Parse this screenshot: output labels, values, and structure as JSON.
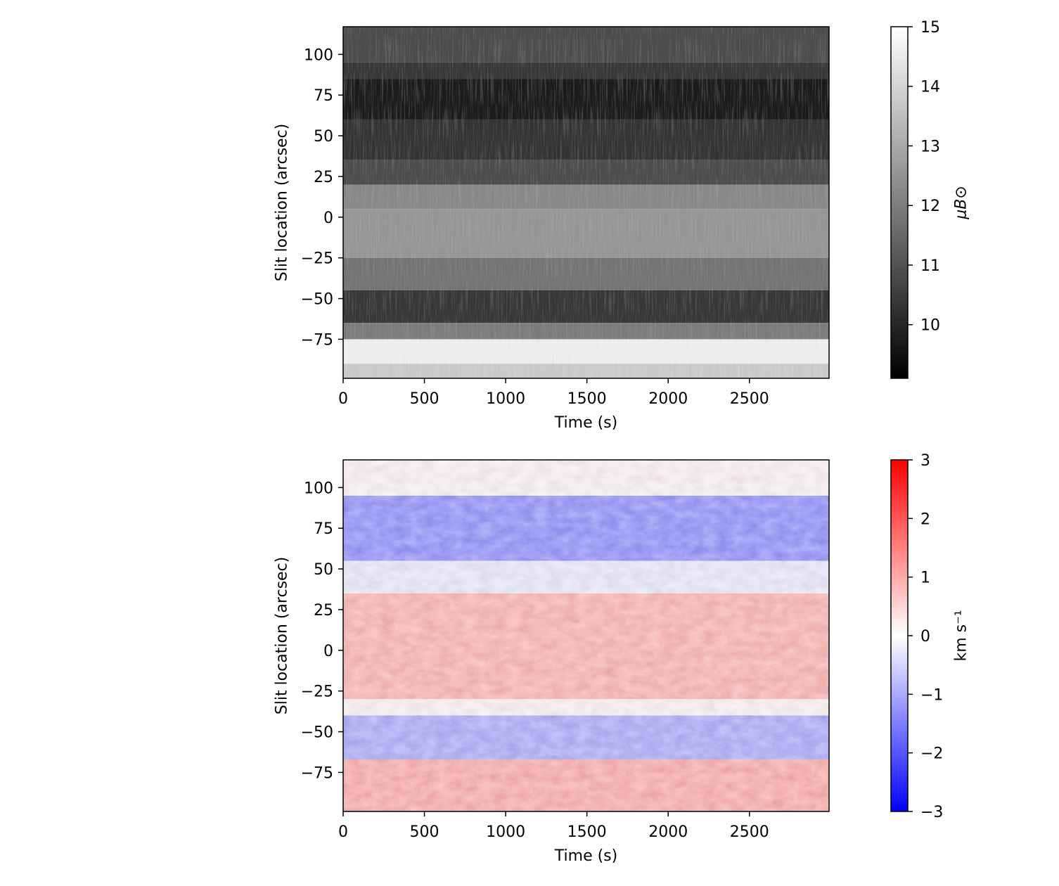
{
  "chart_data": [
    {
      "type": "heatmap",
      "panel": "top",
      "title": "",
      "xlabel": "Time (s)",
      "ylabel": "Slit location (arcsec)",
      "xlim": [
        0,
        2990
      ],
      "ylim": [
        -99,
        117
      ],
      "x_ticks": [
        0,
        500,
        1000,
        1500,
        2000,
        2500
      ],
      "y_ticks": [
        100,
        75,
        50,
        25,
        0,
        -25,
        -50,
        -75
      ],
      "grid": false,
      "colormap": "gray",
      "colorbar": {
        "label": "μB⊙",
        "vmin": 9.1,
        "vmax": 15,
        "ticks": [
          10,
          11,
          12,
          13,
          14,
          15
        ]
      },
      "bands": [
        {
          "y_from": 117,
          "y_to": 95,
          "value": 10.9
        },
        {
          "y_from": 95,
          "y_to": 85,
          "value": 10.4
        },
        {
          "y_from": 85,
          "y_to": 60,
          "value": 9.7
        },
        {
          "y_from": 60,
          "y_to": 35,
          "value": 10.3
        },
        {
          "y_from": 35,
          "y_to": 20,
          "value": 10.9
        },
        {
          "y_from": 20,
          "y_to": 5,
          "value": 12.3
        },
        {
          "y_from": 5,
          "y_to": -25,
          "value": 12.6
        },
        {
          "y_from": -25,
          "y_to": -45,
          "value": 11.8
        },
        {
          "y_from": -45,
          "y_to": -65,
          "value": 10.4
        },
        {
          "y_from": -65,
          "y_to": -75,
          "value": 12.0
        },
        {
          "y_from": -75,
          "y_to": -90,
          "value": 14.6
        },
        {
          "y_from": -90,
          "y_to": -99,
          "value": 13.8
        }
      ]
    },
    {
      "type": "heatmap",
      "panel": "bottom",
      "title": "",
      "xlabel": "Time (s)",
      "ylabel": "Slit location (arcsec)",
      "xlim": [
        0,
        2990
      ],
      "ylim": [
        -99,
        117
      ],
      "x_ticks": [
        0,
        500,
        1000,
        1500,
        2000,
        2500
      ],
      "y_ticks": [
        100,
        75,
        50,
        25,
        0,
        -25,
        -50,
        -75
      ],
      "grid": false,
      "colormap": "bwr",
      "colorbar": {
        "label": "km s⁻¹",
        "vmin": -3,
        "vmax": 3,
        "ticks": [
          3,
          2,
          1,
          0,
          -1,
          -2,
          -3
        ]
      },
      "bands": [
        {
          "y_from": 117,
          "y_to": 95,
          "value": 0.1
        },
        {
          "y_from": 95,
          "y_to": 55,
          "value": -1.2
        },
        {
          "y_from": 55,
          "y_to": 35,
          "value": -0.2
        },
        {
          "y_from": 35,
          "y_to": -30,
          "value": 0.8
        },
        {
          "y_from": -30,
          "y_to": -40,
          "value": 0.1
        },
        {
          "y_from": -40,
          "y_to": -67,
          "value": -0.9
        },
        {
          "y_from": -67,
          "y_to": -99,
          "value": 0.9
        }
      ]
    }
  ]
}
